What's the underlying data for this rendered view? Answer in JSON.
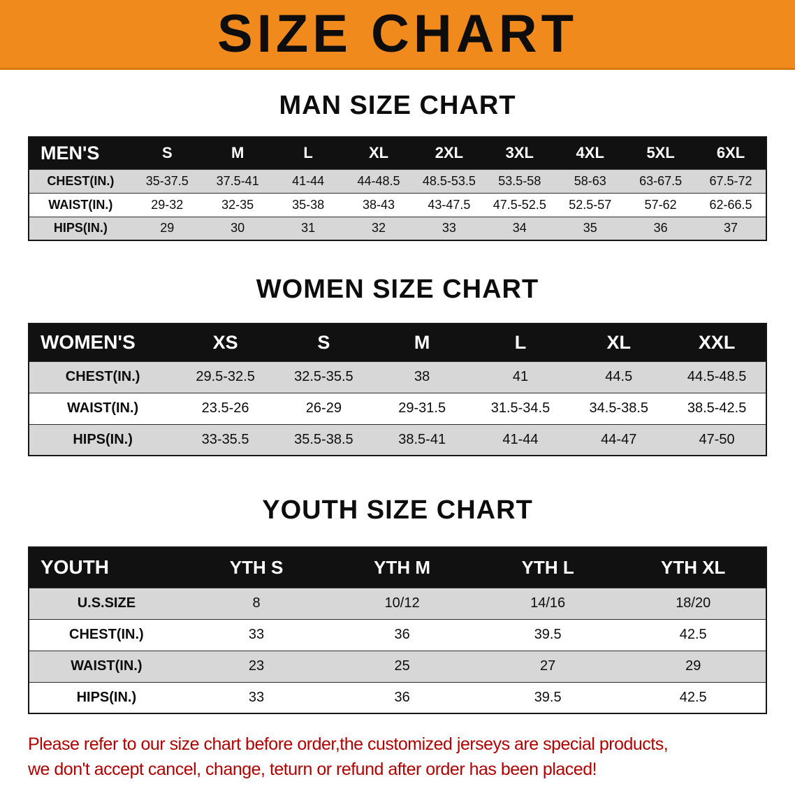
{
  "banner": {
    "title": "SIZE CHART"
  },
  "colors": {
    "banner_bg": "#f18a1d",
    "header_bg": "#111111",
    "row_shaded": "#d7d7d7",
    "footer_red": "#b20000"
  },
  "sections": [
    {
      "heading": "MAN SIZE CHART",
      "table": {
        "header": [
          "MEN'S",
          "S",
          "M",
          "L",
          "XL",
          "2XL",
          "3XL",
          "4XL",
          "5XL",
          "6XL"
        ],
        "rows": [
          {
            "label": "CHEST(IN.)",
            "values": [
              "35-37.5",
              "37.5-41",
              "41-44",
              "44-48.5",
              "48.5-53.5",
              "53.5-58",
              "58-63",
              "63-67.5",
              "67.5-72"
            ]
          },
          {
            "label": "WAIST(IN.)",
            "values": [
              "29-32",
              "32-35",
              "35-38",
              "38-43",
              "43-47.5",
              "47.5-52.5",
              "52.5-57",
              "57-62",
              "62-66.5"
            ]
          },
          {
            "label": "HIPS(IN.)",
            "values": [
              "29",
              "30",
              "31",
              "32",
              "33",
              "34",
              "35",
              "36",
              "37"
            ]
          }
        ]
      }
    },
    {
      "heading": "WOMEN SIZE CHART",
      "table": {
        "header": [
          "WOMEN'S",
          "XS",
          "S",
          "M",
          "L",
          "XL",
          "XXL"
        ],
        "rows": [
          {
            "label": "CHEST(IN.)",
            "values": [
              "29.5-32.5",
              "32.5-35.5",
              "38",
              "41",
              "44.5",
              "44.5-48.5"
            ]
          },
          {
            "label": "WAIST(IN.)",
            "values": [
              "23.5-26",
              "26-29",
              "29-31.5",
              "31.5-34.5",
              "34.5-38.5",
              "38.5-42.5"
            ]
          },
          {
            "label": "HIPS(IN.)",
            "values": [
              "33-35.5",
              "35.5-38.5",
              "38.5-41",
              "41-44",
              "44-47",
              "47-50"
            ]
          }
        ]
      }
    },
    {
      "heading": "YOUTH SIZE CHART",
      "table": {
        "header": [
          "YOUTH",
          "YTH S",
          "YTH M",
          "YTH L",
          "YTH XL"
        ],
        "rows": [
          {
            "label": "U.S.SIZE",
            "values": [
              "8",
              "10/12",
              "14/16",
              "18/20"
            ]
          },
          {
            "label": "CHEST(IN.)",
            "values": [
              "33",
              "36",
              "39.5",
              "42.5"
            ]
          },
          {
            "label": "WAIST(IN.)",
            "values": [
              "23",
              "25",
              "27",
              "29"
            ]
          },
          {
            "label": "HIPS(IN.)",
            "values": [
              "33",
              "36",
              "39.5",
              "42.5"
            ]
          }
        ]
      }
    }
  ],
  "footer": {
    "line1": "Please refer to our size chart before order,the customized jerseys are special products,",
    "line2": "we don't accept cancel, change, teturn or refund after order has been placed!"
  }
}
